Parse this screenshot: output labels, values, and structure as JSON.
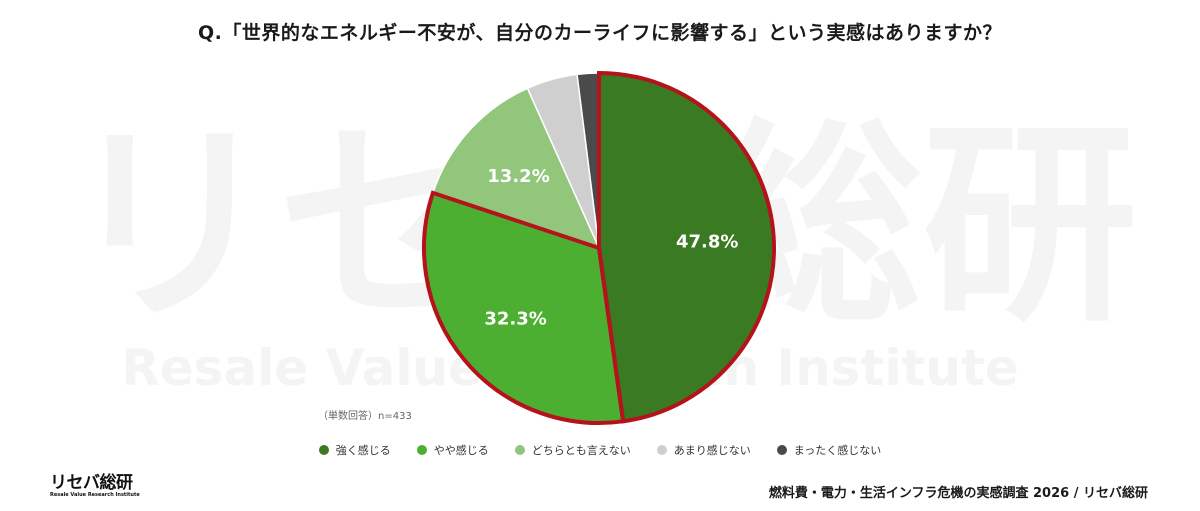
{
  "title": "Q.「世界的なエネルギー不安が、自分のカーライフに影響する」という実感はありますか？",
  "note": "（単数回答）n=433",
  "watermark": {
    "main": "リセバ総研",
    "sub": "Resale Value Research Institute"
  },
  "logo": {
    "main": "リセバ総研",
    "sub": "Resale Value Research Institute"
  },
  "source": "燃料費・電力・生活インフラ危機の実感調査 2026 / リセバ総研",
  "chart_data": {
    "type": "pie",
    "categories": [
      "強く感じる",
      "やや感じる",
      "どちらとも言えない",
      "あまり感じない",
      "まったく感じない"
    ],
    "values": [
      47.8,
      32.3,
      13.2,
      4.7,
      2.0
    ],
    "labels": [
      "47.8%",
      "32.3%",
      "13.2%",
      "",
      ""
    ],
    "colors": [
      "#3a7a22",
      "#4caf32",
      "#92c67a",
      "#cfcfcf",
      "#4a4a4a"
    ],
    "highlight_color": "#b5121b",
    "highlighted": [
      0,
      1
    ],
    "start_angle": "12 o'clock, clockwise",
    "legend_position": "bottom"
  }
}
